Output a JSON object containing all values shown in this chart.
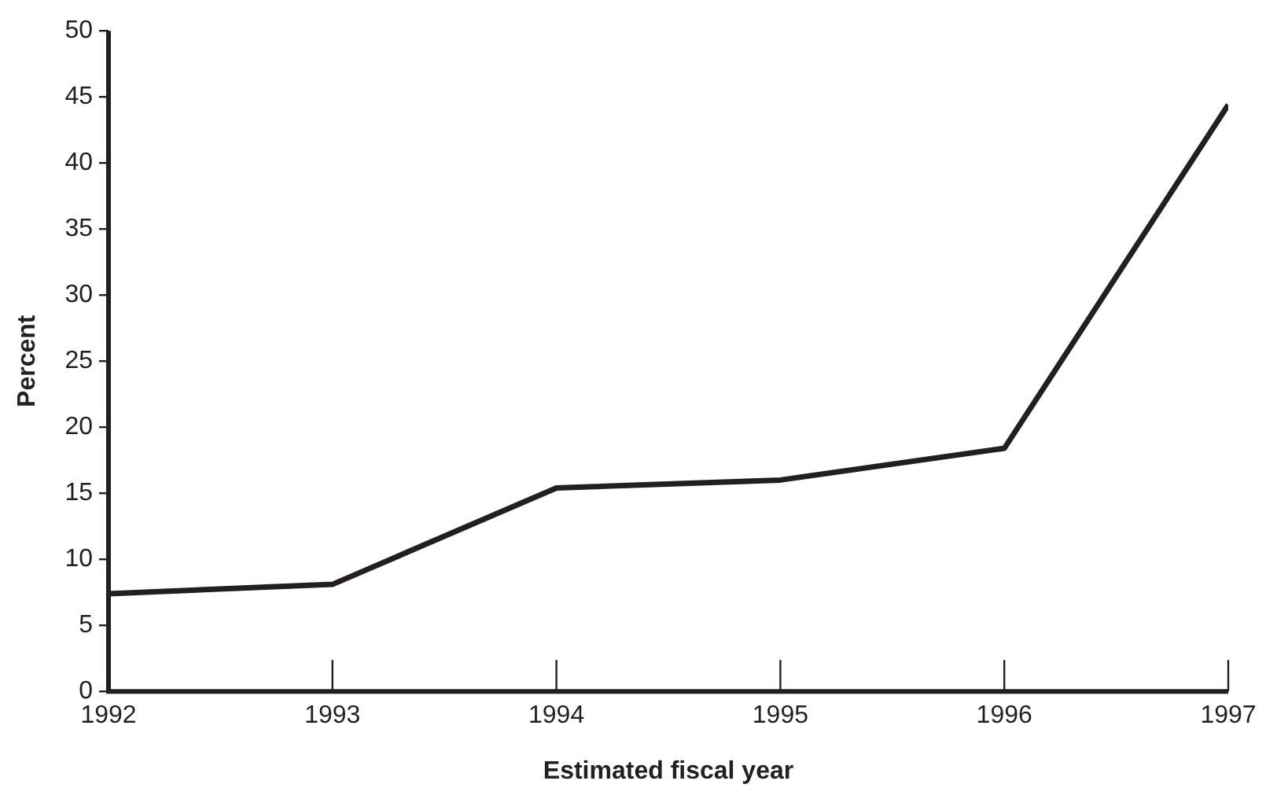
{
  "chart_data": {
    "type": "line",
    "xlabel": "Estimated fiscal year",
    "ylabel": "Percent",
    "x": [
      1992,
      1993,
      1994,
      1995,
      1996,
      1997
    ],
    "series": [
      {
        "color": "#231f20",
        "values": [
          7.4,
          8.1,
          15.4,
          16.0,
          18.4,
          44.4
        ]
      }
    ],
    "xlim": [
      1992,
      1997
    ],
    "xticks": [
      1992,
      1993,
      1994,
      1995,
      1996,
      1997
    ],
    "ylim": [
      0,
      50
    ],
    "yticks": [
      0,
      5,
      10,
      15,
      20,
      25,
      30,
      35,
      40,
      45,
      50
    ],
    "grid": false,
    "legend": false,
    "marker": "none",
    "line_style": "solid"
  }
}
